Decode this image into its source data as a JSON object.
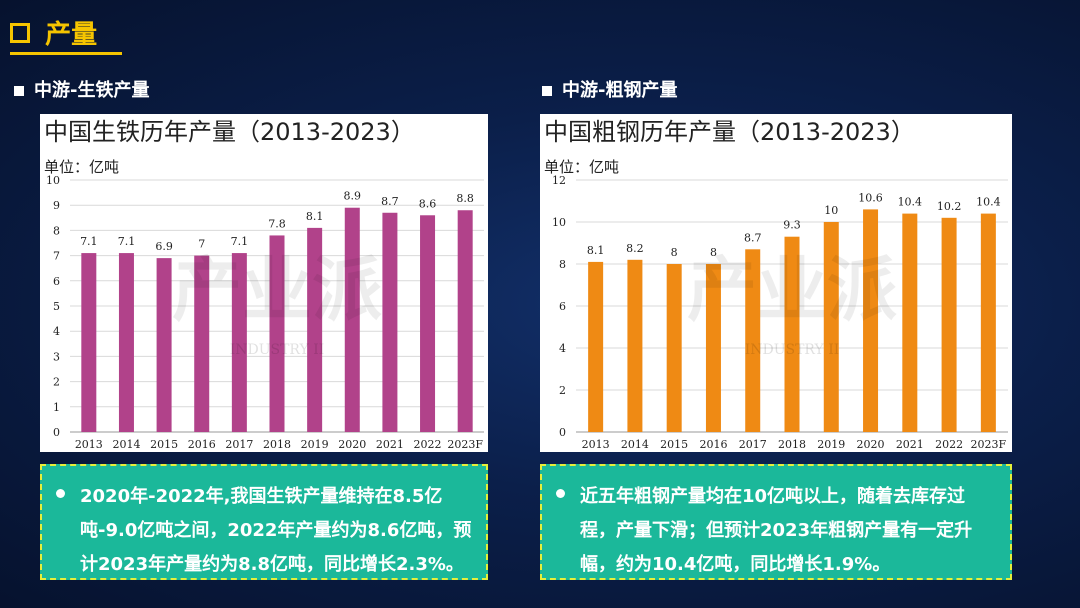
{
  "header": {
    "title": "产量"
  },
  "left": {
    "section_title": "中游-生铁产量",
    "note": "2020年-2022年,我国生铁产量维持在8.5亿吨-9.0亿吨之间，2022年产量约为8.6亿吨，预计2023年产量约为8.8亿吨，同比增长2.3%。"
  },
  "right": {
    "section_title": "中游-粗钢产量",
    "note": "近五年粗钢产量均在10亿吨以上，随着去库存过程，产量下滑；但预计2023年粗钢产量有一定升幅，约为10.4亿吨，同比增长1.9%。"
  },
  "watermark": {
    "text": "产业派",
    "sub": "INDUSTRY II"
  },
  "colors": {
    "accent": "#f5c400",
    "iron_bar": "#b1428a",
    "steel_bar": "#ef8a14",
    "note_bg": "#1bb89a"
  },
  "chart_data": [
    {
      "type": "bar",
      "title": "中国生铁历年产量（2013-2023）",
      "unit": "单位：亿吨",
      "categories": [
        "2013",
        "2014",
        "2015",
        "2016",
        "2017",
        "2018",
        "2019",
        "2020",
        "2021",
        "2022",
        "2023F"
      ],
      "values": [
        7.1,
        7.1,
        6.9,
        7,
        7.1,
        7.8,
        8.1,
        8.9,
        8.7,
        8.6,
        8.8
      ],
      "value_labels": [
        "7.1",
        "7.1",
        "6.9",
        "7",
        "7.1",
        "7.8",
        "8.1",
        "8.9",
        "8.7",
        "8.6",
        "8.8"
      ],
      "ylim": [
        0,
        10
      ],
      "yticks": [
        0,
        1,
        2,
        3,
        4,
        5,
        6,
        7,
        8,
        9,
        10
      ],
      "grid": true
    },
    {
      "type": "bar",
      "title": "中国粗钢历年产量（2013-2023）",
      "unit": "单位：亿吨",
      "categories": [
        "2013",
        "2014",
        "2015",
        "2016",
        "2017",
        "2018",
        "2019",
        "2020",
        "2021",
        "2022",
        "2023F"
      ],
      "values": [
        8.1,
        8.2,
        8,
        8,
        8.7,
        9.3,
        10,
        10.6,
        10.4,
        10.2,
        10.4
      ],
      "value_labels": [
        "8.1",
        "8.2",
        "8",
        "8",
        "8.7",
        "9.3",
        "10",
        "10.6",
        "10.4",
        "10.2",
        "10.4"
      ],
      "ylim": [
        0,
        12
      ],
      "yticks": [
        0,
        2,
        4,
        6,
        8,
        10,
        12
      ],
      "grid": true
    }
  ]
}
